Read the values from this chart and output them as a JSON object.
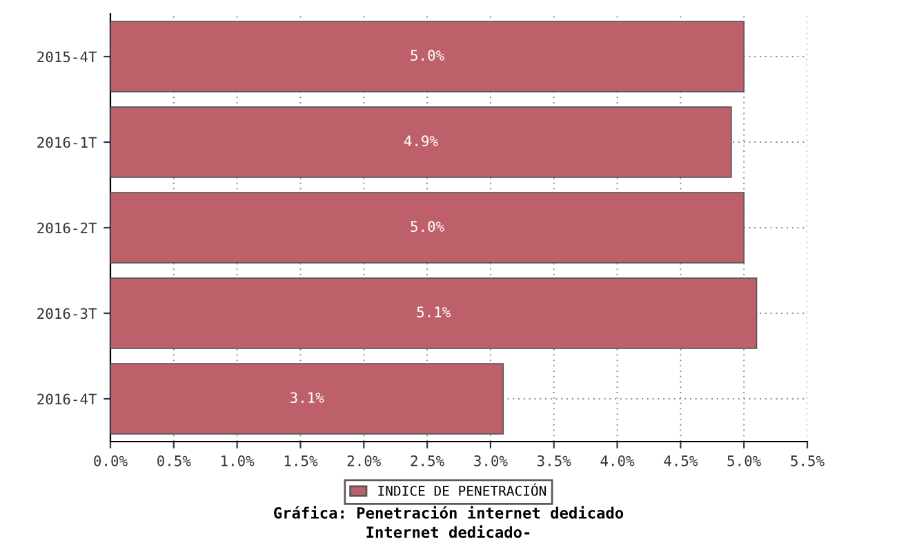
{
  "chart_data": {
    "type": "bar",
    "orientation": "horizontal",
    "categories": [
      "2015-4T",
      "2016-1T",
      "2016-2T",
      "2016-3T",
      "2016-4T"
    ],
    "series": [
      {
        "name": "INDICE DE PENETRACIÓN",
        "color": "#be606a",
        "values": [
          5.0,
          4.9,
          5.0,
          5.1,
          3.1
        ],
        "value_labels": [
          "5.0%",
          "4.9%",
          "5.0%",
          "5.1%",
          "3.1%"
        ]
      }
    ],
    "xlim": [
      0,
      5.5
    ],
    "xticks": [
      {
        "value": 0,
        "label": "0.0%"
      },
      {
        "value": 0.5,
        "label": "0.5%"
      },
      {
        "value": 1,
        "label": "1.0%"
      },
      {
        "value": 1.5,
        "label": "1.5%"
      },
      {
        "value": 2,
        "label": "2.0%"
      },
      {
        "value": 2.5,
        "label": "2.5%"
      },
      {
        "value": 3,
        "label": "3.0%"
      },
      {
        "value": 3.5,
        "label": "3.5%"
      },
      {
        "value": 4,
        "label": "4.0%"
      },
      {
        "value": 4.5,
        "label": "4.5%"
      },
      {
        "value": 5,
        "label": "5.0%"
      },
      {
        "value": 5.5,
        "label": "5.5%"
      }
    ],
    "grid": true,
    "legend": "bottom",
    "annotations": [
      "Gráfica: Penetración internet dedicado",
      "Internet dedicado-"
    ]
  }
}
